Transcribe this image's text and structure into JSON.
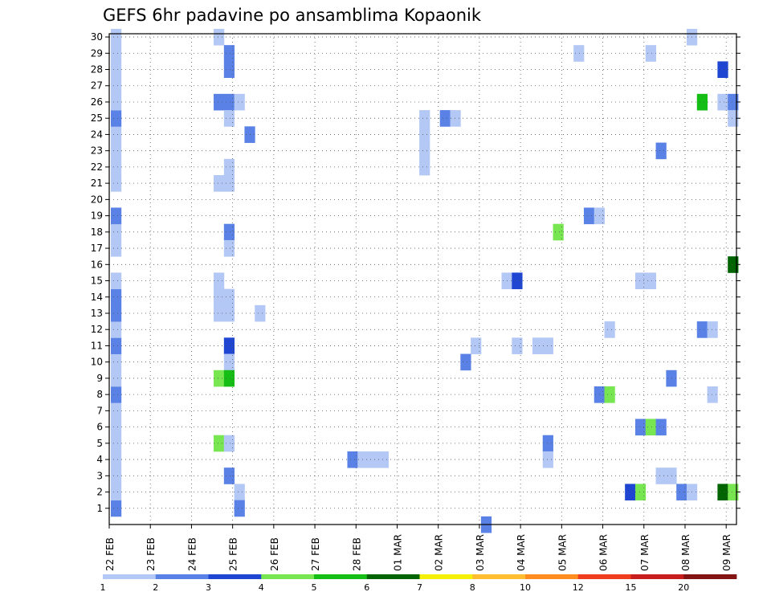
{
  "chart_data": {
    "type": "heatmap",
    "title": "GEFS 6hr padavine po ansamblima Kopaonik",
    "xlabel": "",
    "ylabel": "",
    "x_tick_labels": [
      "22 FEB",
      "23 FEB",
      "24 FEB",
      "25 FEB",
      "26 FEB",
      "27 FEB",
      "28 FEB",
      "01 MAR",
      "02 MAR",
      "03 MAR",
      "04 MAR",
      "05 MAR",
      "06 MAR",
      "07 MAR",
      "08 MAR",
      "09 MAR"
    ],
    "x_range_days": [
      0,
      15.25
    ],
    "y_range_members": [
      0,
      30
    ],
    "y_tick_labels": [
      "1",
      "2",
      "3",
      "4",
      "5",
      "6",
      "7",
      "8",
      "9",
      "10",
      "11",
      "12",
      "13",
      "14",
      "15",
      "16",
      "17",
      "18",
      "19",
      "20",
      "21",
      "22",
      "23",
      "24",
      "25",
      "26",
      "27",
      "28",
      "29",
      "30"
    ],
    "grid": true,
    "colorbar": {
      "labels": [
        "1",
        "2",
        "3",
        "4",
        "5",
        "6",
        "7",
        "8",
        "10",
        "12",
        "15",
        "20"
      ],
      "colors": [
        "#b4c8f5",
        "#5a82e6",
        "#1e46d2",
        "#78e650",
        "#14be14",
        "#006400",
        "#f5f00a",
        "#ffbe32",
        "#ff8c1e",
        "#f03c1e",
        "#c81e1e",
        "#821414"
      ]
    },
    "cells_note": "each cell: member (y), time step index t (6-hour steps from 22 FEB 00Z), color class c (index into colorbar.colors)",
    "cells": [
      {
        "m": 1,
        "t": 0,
        "c": 1
      },
      {
        "m": 2,
        "t": 0,
        "c": 0
      },
      {
        "m": 3,
        "t": 0,
        "c": 0
      },
      {
        "m": 4,
        "t": 0,
        "c": 0
      },
      {
        "m": 5,
        "t": 0,
        "c": 0
      },
      {
        "m": 6,
        "t": 0,
        "c": 0
      },
      {
        "m": 7,
        "t": 0,
        "c": 0
      },
      {
        "m": 8,
        "t": 0,
        "c": 1
      },
      {
        "m": 9,
        "t": 0,
        "c": 0
      },
      {
        "m": 10,
        "t": 0,
        "c": 0
      },
      {
        "m": 11,
        "t": 0,
        "c": 1
      },
      {
        "m": 12,
        "t": 0,
        "c": 0
      },
      {
        "m": 13,
        "t": 0,
        "c": 1
      },
      {
        "m": 14,
        "t": 0,
        "c": 1
      },
      {
        "m": 15,
        "t": 0,
        "c": 0
      },
      {
        "m": 17,
        "t": 0,
        "c": 0
      },
      {
        "m": 18,
        "t": 0,
        "c": 0
      },
      {
        "m": 19,
        "t": 0,
        "c": 1
      },
      {
        "m": 21,
        "t": 0,
        "c": 0
      },
      {
        "m": 22,
        "t": 0,
        "c": 0
      },
      {
        "m": 23,
        "t": 0,
        "c": 0
      },
      {
        "m": 24,
        "t": 0,
        "c": 0
      },
      {
        "m": 25,
        "t": 0,
        "c": 1
      },
      {
        "m": 26,
        "t": 0,
        "c": 0
      },
      {
        "m": 27,
        "t": 0,
        "c": 0
      },
      {
        "m": 28,
        "t": 0,
        "c": 0
      },
      {
        "m": 29,
        "t": 0,
        "c": 0
      },
      {
        "m": 30,
        "t": 0,
        "c": 0
      },
      {
        "m": 30,
        "t": 10,
        "c": 0
      },
      {
        "m": 26,
        "t": 10,
        "c": 1
      },
      {
        "m": 26,
        "t": 11,
        "c": 1
      },
      {
        "m": 26,
        "t": 12,
        "c": 0
      },
      {
        "m": 29,
        "t": 11,
        "c": 1
      },
      {
        "m": 28,
        "t": 11,
        "c": 1
      },
      {
        "m": 25,
        "t": 11,
        "c": 0
      },
      {
        "m": 22,
        "t": 11,
        "c": 0
      },
      {
        "m": 21,
        "t": 10,
        "c": 0
      },
      {
        "m": 21,
        "t": 11,
        "c": 0
      },
      {
        "m": 18,
        "t": 11,
        "c": 1
      },
      {
        "m": 17,
        "t": 11,
        "c": 0
      },
      {
        "m": 15,
        "t": 10,
        "c": 0
      },
      {
        "m": 14,
        "t": 10,
        "c": 0
      },
      {
        "m": 14,
        "t": 11,
        "c": 0
      },
      {
        "m": 13,
        "t": 10,
        "c": 0
      },
      {
        "m": 13,
        "t": 11,
        "c": 0
      },
      {
        "m": 11,
        "t": 11,
        "c": 2
      },
      {
        "m": 10,
        "t": 11,
        "c": 0
      },
      {
        "m": 9,
        "t": 10,
        "c": 3
      },
      {
        "m": 9,
        "t": 11,
        "c": 4
      },
      {
        "m": 5,
        "t": 10,
        "c": 3
      },
      {
        "m": 5,
        "t": 11,
        "c": 0
      },
      {
        "m": 3,
        "t": 11,
        "c": 1
      },
      {
        "m": 2,
        "t": 12,
        "c": 0
      },
      {
        "m": 1,
        "t": 12,
        "c": 1
      },
      {
        "m": 24,
        "t": 13,
        "c": 1
      },
      {
        "m": 13,
        "t": 14,
        "c": 0
      },
      {
        "m": 4,
        "t": 23,
        "c": 1
      },
      {
        "m": 4,
        "t": 24,
        "c": 0
      },
      {
        "m": 4,
        "t": 25,
        "c": 0
      },
      {
        "m": 4,
        "t": 26,
        "c": 0
      },
      {
        "m": 25,
        "t": 30,
        "c": 0
      },
      {
        "m": 24,
        "t": 30,
        "c": 0
      },
      {
        "m": 23,
        "t": 30,
        "c": 0
      },
      {
        "m": 22,
        "t": 30,
        "c": 0
      },
      {
        "m": 25,
        "t": 32,
        "c": 1
      },
      {
        "m": 25,
        "t": 33,
        "c": 0
      },
      {
        "m": 11,
        "t": 35,
        "c": 0
      },
      {
        "m": 10,
        "t": 34,
        "c": 1
      },
      {
        "m": 0,
        "t": 36,
        "c": 1
      },
      {
        "m": 15,
        "t": 38,
        "c": 0
      },
      {
        "m": 15,
        "t": 39,
        "c": 2
      },
      {
        "m": 11,
        "t": 39,
        "c": 0
      },
      {
        "m": 11,
        "t": 41,
        "c": 0
      },
      {
        "m": 11,
        "t": 42,
        "c": 0
      },
      {
        "m": 18,
        "t": 43,
        "c": 3
      },
      {
        "m": 5,
        "t": 42,
        "c": 1
      },
      {
        "m": 4,
        "t": 42,
        "c": 0
      },
      {
        "m": 29,
        "t": 45,
        "c": 0
      },
      {
        "m": 19,
        "t": 46,
        "c": 1
      },
      {
        "m": 19,
        "t": 47,
        "c": 0
      },
      {
        "m": 12,
        "t": 48,
        "c": 0
      },
      {
        "m": 8,
        "t": 47,
        "c": 1
      },
      {
        "m": 8,
        "t": 48,
        "c": 3
      },
      {
        "m": 2,
        "t": 50,
        "c": 2
      },
      {
        "m": 2,
        "t": 51,
        "c": 3
      },
      {
        "m": 6,
        "t": 51,
        "c": 1
      },
      {
        "m": 6,
        "t": 52,
        "c": 3
      },
      {
        "m": 6,
        "t": 53,
        "c": 1
      },
      {
        "m": 15,
        "t": 51,
        "c": 0
      },
      {
        "m": 15,
        "t": 52,
        "c": 0
      },
      {
        "m": 29,
        "t": 52,
        "c": 0
      },
      {
        "m": 23,
        "t": 53,
        "c": 1
      },
      {
        "m": 3,
        "t": 53,
        "c": 0
      },
      {
        "m": 3,
        "t": 54,
        "c": 0
      },
      {
        "m": 9,
        "t": 54,
        "c": 1
      },
      {
        "m": 2,
        "t": 55,
        "c": 1
      },
      {
        "m": 2,
        "t": 56,
        "c": 0
      },
      {
        "m": 30,
        "t": 56,
        "c": 0
      },
      {
        "m": 26,
        "t": 57,
        "c": 4
      },
      {
        "m": 12,
        "t": 57,
        "c": 1
      },
      {
        "m": 12,
        "t": 58,
        "c": 0
      },
      {
        "m": 8,
        "t": 58,
        "c": 0
      },
      {
        "m": 28,
        "t": 59,
        "c": 2
      },
      {
        "m": 26,
        "t": 59,
        "c": 0
      },
      {
        "m": 26,
        "t": 60,
        "c": 1
      },
      {
        "m": 25,
        "t": 60,
        "c": 0
      },
      {
        "m": 2,
        "t": 59,
        "c": 5
      },
      {
        "m": 2,
        "t": 60,
        "c": 3
      },
      {
        "m": 16,
        "t": 60,
        "c": 5
      }
    ]
  }
}
